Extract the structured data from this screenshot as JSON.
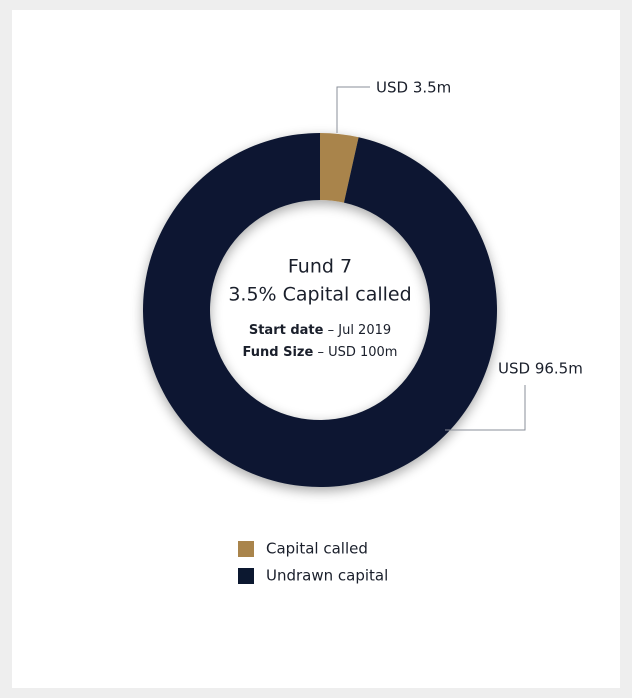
{
  "chart_data": {
    "type": "donut",
    "title": "Fund 7",
    "subtitle": "3.5% Capital called",
    "details": [
      {
        "label": "Start date",
        "text": "– Jul 2019"
      },
      {
        "label": "Fund Size",
        "text": "– USD 100m"
      }
    ],
    "categories": [
      "Capital called",
      "Undrawn capital"
    ],
    "values": [
      3.5,
      96.5
    ],
    "value_labels": [
      "USD 3.5m",
      "USD 96.5m"
    ],
    "colors": [
      "#a9844b",
      "#0c1830"
    ]
  }
}
